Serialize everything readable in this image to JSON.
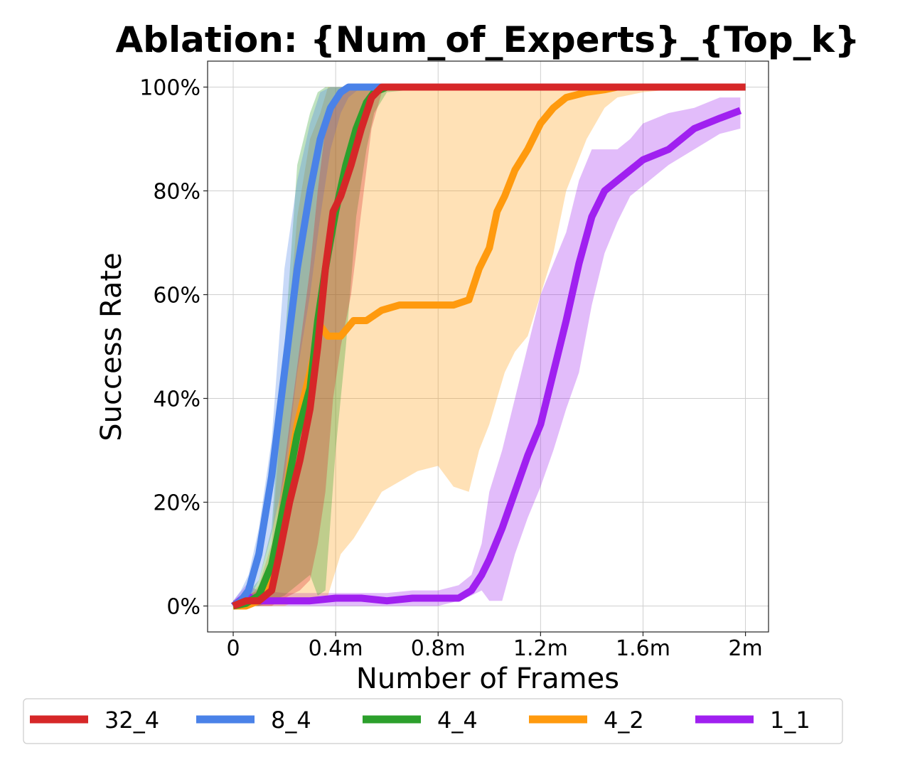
{
  "chart_data": {
    "type": "line",
    "title": "Ablation: {Num_of_Experts}_{Top_k}",
    "xlabel": "Number of Frames",
    "ylabel": "Success Rate",
    "xlim": [
      -0.1,
      2.09
    ],
    "ylim": [
      -0.05,
      1.05
    ],
    "x_ticks": [
      0,
      0.4,
      0.8,
      1.2,
      1.6,
      2.0
    ],
    "x_tick_labels": [
      "0",
      "0.4m",
      "0.8m",
      "1.2m",
      "1.6m",
      "2m"
    ],
    "y_ticks": [
      0,
      0.2,
      0.4,
      0.6,
      0.8,
      1.0
    ],
    "y_tick_labels": [
      "0%",
      "20%",
      "40%",
      "60%",
      "80%",
      "100%"
    ],
    "x_unit": "million frames",
    "grid": true,
    "legend_position": "bottom",
    "series": [
      {
        "name": "1_1",
        "color": "#a020f0",
        "x": [
          0,
          0.05,
          0.1,
          0.2,
          0.3,
          0.4,
          0.5,
          0.6,
          0.7,
          0.8,
          0.88,
          0.93,
          0.97,
          1.0,
          1.05,
          1.1,
          1.15,
          1.2,
          1.25,
          1.3,
          1.35,
          1.4,
          1.45,
          1.5,
          1.55,
          1.6,
          1.7,
          1.8,
          1.9,
          1.98
        ],
        "y": [
          0,
          0.02,
          0.01,
          0.01,
          0.01,
          0.015,
          0.015,
          0.01,
          0.015,
          0.015,
          0.015,
          0.03,
          0.06,
          0.09,
          0.15,
          0.22,
          0.29,
          0.35,
          0.45,
          0.55,
          0.66,
          0.75,
          0.8,
          0.82,
          0.84,
          0.86,
          0.88,
          0.92,
          0.94,
          0.955
        ],
        "lower": [
          0,
          0,
          0,
          0,
          0,
          0,
          0,
          0,
          0,
          0,
          0.01,
          0.02,
          0.03,
          0.01,
          0.01,
          0.1,
          0.17,
          0.23,
          0.3,
          0.38,
          0.45,
          0.58,
          0.68,
          0.74,
          0.79,
          0.81,
          0.85,
          0.88,
          0.91,
          0.92
        ],
        "upper": [
          0.01,
          0.04,
          0.03,
          0.025,
          0.025,
          0.025,
          0.025,
          0.025,
          0.03,
          0.03,
          0.04,
          0.06,
          0.12,
          0.22,
          0.3,
          0.4,
          0.5,
          0.6,
          0.66,
          0.72,
          0.82,
          0.88,
          0.88,
          0.88,
          0.9,
          0.93,
          0.95,
          0.96,
          0.98,
          0.98
        ]
      },
      {
        "name": "4_2",
        "color": "#ff9a0e",
        "x": [
          0,
          0.05,
          0.1,
          0.15,
          0.2,
          0.25,
          0.3,
          0.34,
          0.37,
          0.42,
          0.47,
          0.52,
          0.58,
          0.65,
          0.72,
          0.8,
          0.86,
          0.92,
          0.96,
          1.0,
          1.03,
          1.06,
          1.1,
          1.15,
          1.2,
          1.25,
          1.3,
          1.38,
          1.45,
          1.5,
          1.6,
          1.8,
          2.0
        ],
        "y": [
          0,
          0,
          0.01,
          0.05,
          0.2,
          0.35,
          0.45,
          0.54,
          0.52,
          0.52,
          0.55,
          0.55,
          0.57,
          0.58,
          0.58,
          0.58,
          0.58,
          0.59,
          0.65,
          0.69,
          0.76,
          0.79,
          0.84,
          0.88,
          0.93,
          0.96,
          0.98,
          0.99,
          0.995,
          1.0,
          1.0,
          1.0,
          1.0
        ],
        "lower": [
          0,
          0,
          0,
          0,
          0,
          0.01,
          0.01,
          0.02,
          0.02,
          0.1,
          0.13,
          0.17,
          0.22,
          0.24,
          0.26,
          0.27,
          0.23,
          0.22,
          0.3,
          0.35,
          0.4,
          0.45,
          0.49,
          0.52,
          0.6,
          0.68,
          0.8,
          0.9,
          0.96,
          0.98,
          0.99,
          1.0,
          1.0
        ],
        "upper": [
          0.01,
          0.01,
          0.04,
          0.12,
          0.45,
          0.75,
          0.9,
          0.95,
          1.0,
          1.0,
          1.0,
          1.0,
          1.0,
          1.0,
          1.0,
          1.0,
          1.0,
          1.0,
          1.0,
          1.0,
          1.0,
          1.0,
          1.0,
          1.0,
          1.0,
          1.0,
          1.0,
          1.0,
          1.0,
          1.0,
          1.0,
          1.0,
          1.0
        ]
      },
      {
        "name": "4_4",
        "color": "#2ca02c",
        "x": [
          0,
          0.05,
          0.1,
          0.15,
          0.2,
          0.25,
          0.3,
          0.33,
          0.36,
          0.4,
          0.44,
          0.48,
          0.52,
          0.55,
          0.6,
          0.8,
          1.0,
          1.5,
          2.0
        ],
        "y": [
          0,
          0.005,
          0.02,
          0.08,
          0.2,
          0.33,
          0.42,
          0.55,
          0.65,
          0.76,
          0.85,
          0.92,
          0.97,
          0.99,
          1.0,
          1.0,
          1.0,
          1.0,
          1.0
        ],
        "lower": [
          0,
          0,
          0,
          0.01,
          0.02,
          0.04,
          0.06,
          0.02,
          0.03,
          0.3,
          0.5,
          0.75,
          0.88,
          0.95,
          0.99,
          1.0,
          1.0,
          1.0,
          1.0
        ],
        "upper": [
          0.01,
          0.02,
          0.05,
          0.15,
          0.5,
          0.85,
          0.95,
          0.99,
          1.0,
          1.0,
          1.0,
          1.0,
          1.0,
          1.0,
          1.0,
          1.0,
          1.0,
          1.0,
          1.0
        ]
      },
      {
        "name": "8_4",
        "color": "#4a82e8",
        "x": [
          0,
          0.03,
          0.06,
          0.1,
          0.15,
          0.2,
          0.25,
          0.3,
          0.34,
          0.38,
          0.42,
          0.45,
          0.5,
          0.6,
          0.8,
          1.0,
          1.5,
          2.0
        ],
        "y": [
          0,
          0.01,
          0.03,
          0.1,
          0.25,
          0.45,
          0.65,
          0.8,
          0.9,
          0.96,
          0.99,
          1.0,
          1.0,
          1.0,
          1.0,
          1.0,
          1.0,
          1.0
        ],
        "lower": [
          0,
          0,
          0.01,
          0.05,
          0.14,
          0.25,
          0.45,
          0.6,
          0.75,
          0.88,
          0.95,
          0.98,
          1.0,
          1.0,
          1.0,
          1.0,
          1.0,
          1.0
        ],
        "upper": [
          0.01,
          0.03,
          0.06,
          0.15,
          0.32,
          0.65,
          0.82,
          0.93,
          0.99,
          1.0,
          1.0,
          1.0,
          1.0,
          1.0,
          1.0,
          1.0,
          1.0,
          1.0
        ]
      },
      {
        "name": "32_4",
        "color": "#d62728",
        "x": [
          0,
          0.05,
          0.1,
          0.15,
          0.18,
          0.22,
          0.26,
          0.3,
          0.33,
          0.36,
          0.39,
          0.42,
          0.46,
          0.5,
          0.54,
          0.58,
          0.65,
          0.8,
          1.0,
          1.5,
          2.0
        ],
        "y": [
          0,
          0.01,
          0.01,
          0.03,
          0.1,
          0.2,
          0.28,
          0.38,
          0.5,
          0.65,
          0.76,
          0.79,
          0.85,
          0.92,
          0.98,
          1.0,
          1.0,
          1.0,
          1.0,
          1.0,
          1.0
        ],
        "lower": [
          0,
          0,
          0,
          0,
          0.01,
          0.02,
          0.03,
          0.05,
          0.12,
          0.22,
          0.4,
          0.5,
          0.6,
          0.76,
          0.92,
          0.99,
          1.0,
          1.0,
          1.0,
          1.0,
          1.0
        ],
        "upper": [
          0.01,
          0.02,
          0.03,
          0.06,
          0.2,
          0.35,
          0.5,
          0.65,
          0.8,
          0.92,
          0.97,
          0.99,
          1.0,
          1.0,
          1.0,
          1.0,
          1.0,
          1.0,
          1.0,
          1.0,
          1.0
        ]
      }
    ],
    "legend_order": [
      "32_4",
      "8_4",
      "4_4",
      "4_2",
      "1_1"
    ]
  }
}
